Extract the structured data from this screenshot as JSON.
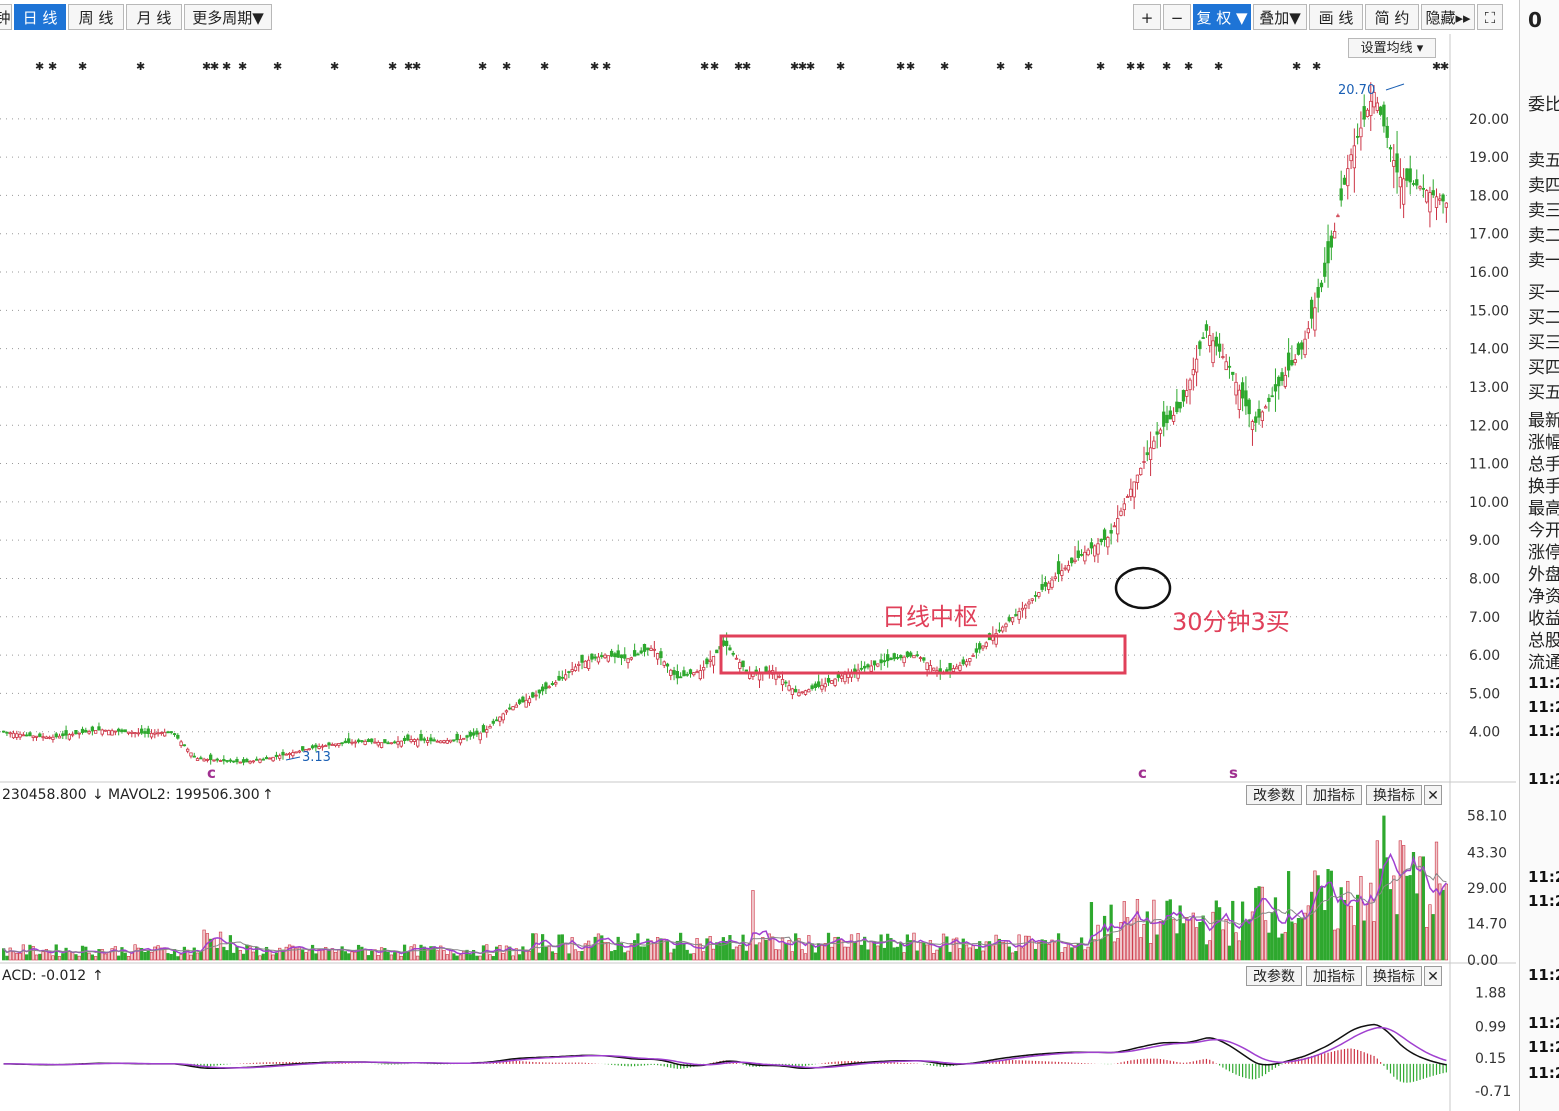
{
  "toolbar": {
    "left": [
      {
        "label": "钟",
        "active": false
      },
      {
        "label": "日 线",
        "active": true
      },
      {
        "label": "周 线",
        "active": false
      },
      {
        "label": "月 线",
        "active": false
      },
      {
        "label": "更多周期▼",
        "active": false
      }
    ],
    "right": [
      {
        "label": "+",
        "active": false
      },
      {
        "label": "−",
        "active": false
      },
      {
        "label": "复 权 ▼",
        "active": true
      },
      {
        "label": "叠加▼",
        "active": false
      },
      {
        "label": "画 线",
        "active": false
      },
      {
        "label": "简 约",
        "active": false
      },
      {
        "label": "隐藏▸▸",
        "active": false
      },
      {
        "label": "⛶",
        "active": false
      }
    ],
    "ma_button": "设置均线 ▾",
    "side_value": "0"
  },
  "price_panel": {
    "y_ticks": [
      "20.00",
      "19.00",
      "18.00",
      "17.00",
      "16.00",
      "15.00",
      "14.00",
      "13.00",
      "12.00",
      "11.00",
      "10.00",
      "9.00",
      "8.00",
      "7.00",
      "6.00",
      "5.00",
      "4.00"
    ],
    "high_label": "20.70",
    "low_label": "3.13",
    "zone_label": "日线中枢",
    "buy_label": "30分钟3买",
    "markers": [
      "c",
      "c",
      "s"
    ]
  },
  "volume_panel": {
    "legend_main": "230458.800",
    "legend_mavol2": "MAVOL2: 199506.300",
    "y_ticks": [
      "58.10",
      "43.30",
      "29.00",
      "14.70",
      "0.00"
    ],
    "buttons": [
      "改参数",
      "加指标",
      "换指标"
    ],
    "close": "✕"
  },
  "macd_panel": {
    "legend": "ACD: -0.012",
    "y_ticks": [
      "1.88",
      "0.99",
      "0.15",
      "-0.71"
    ],
    "buttons": [
      "改参数",
      "加指标",
      "换指标"
    ],
    "close": "✕"
  },
  "side_panel": {
    "labels": [
      "委比",
      "卖五",
      "卖四",
      "卖三",
      "卖二",
      "卖一",
      "买一",
      "买二",
      "买三",
      "买四",
      "买五",
      "最新",
      "涨幅",
      "总手",
      "换手",
      "最高",
      "今开",
      "涨停",
      "外盘",
      "净资",
      "收益",
      "总股",
      "流通"
    ],
    "times": [
      "11:2",
      "11:2",
      "11:2",
      "11:2",
      "11:2",
      "11:2",
      "11:2",
      "11:2",
      "11:2",
      "11:2"
    ]
  },
  "colors": {
    "up": "#cc3344",
    "down": "#2ea82e",
    "box": "#e0405a",
    "ma": "#a040d0",
    "accent": "#1e74d6"
  },
  "chart_data": {
    "type": "candlestick",
    "price_ylim": [
      3.0,
      20.7
    ],
    "price_path": [
      4.0,
      3.9,
      3.85,
      3.95,
      4.05,
      4.0,
      3.95,
      4.0,
      3.3,
      3.25,
      3.2,
      3.3,
      3.45,
      3.6,
      3.7,
      3.75,
      3.7,
      3.8,
      3.75,
      3.8,
      4.0,
      4.6,
      4.9,
      5.3,
      5.8,
      6.0,
      5.9,
      6.2,
      5.4,
      5.6,
      6.3,
      5.5,
      5.6,
      5.0,
      5.2,
      5.5,
      5.7,
      5.9,
      6.0,
      5.5,
      5.8,
      6.4,
      7.0,
      7.6,
      8.2,
      8.7,
      9.1,
      10.5,
      11.8,
      12.5,
      14.5,
      13.5,
      12.0,
      13.0,
      14.0,
      16.0,
      19.0,
      20.7,
      18.5,
      18.2,
      17.8
    ],
    "macd_ylim": [
      -0.9,
      2.0
    ]
  }
}
